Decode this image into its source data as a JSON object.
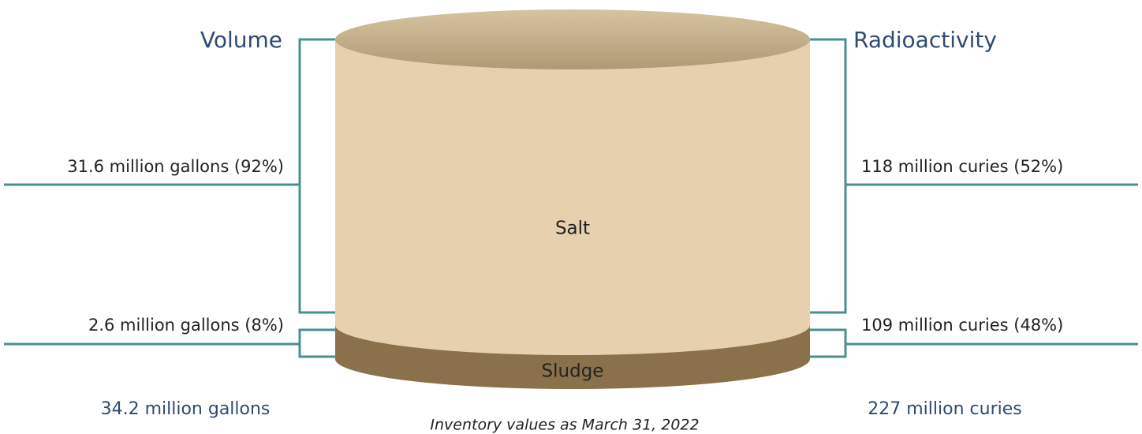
{
  "volume": {
    "heading": "Volume",
    "salt": "31.6 million gallons (92%)",
    "sludge": "2.6 million gallons (8%)",
    "total": "34.2 million gallons"
  },
  "radioactivity": {
    "heading": "Radioactivity",
    "salt": "118 million curies (52%)",
    "sludge": "109 million curies (48%)",
    "total": "227 million curies"
  },
  "layers": {
    "salt": "Salt",
    "sludge": "Sludge"
  },
  "footnote": "Inventory values as March 31, 2022"
}
